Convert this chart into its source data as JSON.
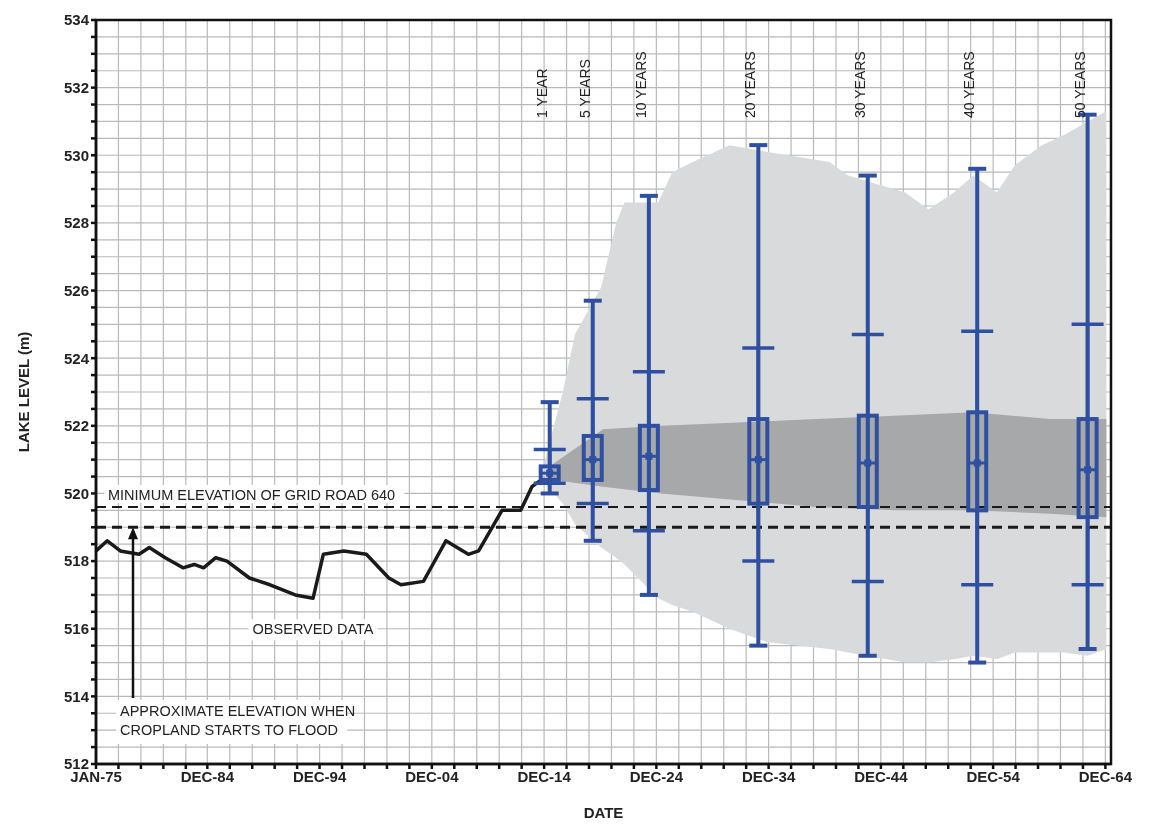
{
  "chart_data": {
    "type": "line",
    "xlabel": "DATE",
    "ylabel": "LAKE LEVEL (m)",
    "grid": true,
    "xlim": [
      "1975-01",
      "2065-06"
    ],
    "xticks": [
      {
        "value": "1975-01",
        "label": "JAN-75"
      },
      {
        "value": "1977-01",
        "label": null
      },
      {
        "value": "1979-01",
        "label": null
      },
      {
        "value": "1981-01",
        "label": null
      },
      {
        "value": "1983-01",
        "label": null
      },
      {
        "value": "1984-12",
        "label": "DEC-84"
      },
      {
        "value": "1986-12",
        "label": null
      },
      {
        "value": "1988-12",
        "label": null
      },
      {
        "value": "1990-12",
        "label": null
      },
      {
        "value": "1992-12",
        "label": null
      },
      {
        "value": "1994-12",
        "label": "DEC-94"
      },
      {
        "value": "1996-12",
        "label": null
      },
      {
        "value": "1998-12",
        "label": null
      },
      {
        "value": "2000-12",
        "label": null
      },
      {
        "value": "2002-12",
        "label": null
      },
      {
        "value": "2004-12",
        "label": "DEC-04"
      },
      {
        "value": "2006-12",
        "label": null
      },
      {
        "value": "2008-12",
        "label": null
      },
      {
        "value": "2010-12",
        "label": null
      },
      {
        "value": "2012-12",
        "label": null
      },
      {
        "value": "2014-12",
        "label": "DEC-14"
      },
      {
        "value": "2016-12",
        "label": null
      },
      {
        "value": "2018-12",
        "label": null
      },
      {
        "value": "2020-12",
        "label": null
      },
      {
        "value": "2022-12",
        "label": null
      },
      {
        "value": "2024-12",
        "label": "DEC-24"
      },
      {
        "value": "2026-12",
        "label": null
      },
      {
        "value": "2028-12",
        "label": null
      },
      {
        "value": "2030-12",
        "label": null
      },
      {
        "value": "2032-12",
        "label": null
      },
      {
        "value": "2034-12",
        "label": "DEC-34"
      },
      {
        "value": "2036-12",
        "label": null
      },
      {
        "value": "2038-12",
        "label": null
      },
      {
        "value": "2040-12",
        "label": null
      },
      {
        "value": "2042-12",
        "label": null
      },
      {
        "value": "2044-12",
        "label": "DEC-44"
      },
      {
        "value": "2046-12",
        "label": null
      },
      {
        "value": "2048-12",
        "label": null
      },
      {
        "value": "2050-12",
        "label": null
      },
      {
        "value": "2052-12",
        "label": null
      },
      {
        "value": "2054-12",
        "label": "DEC-54"
      },
      {
        "value": "2056-12",
        "label": null
      },
      {
        "value": "2058-12",
        "label": null
      },
      {
        "value": "2060-12",
        "label": null
      },
      {
        "value": "2062-12",
        "label": null
      },
      {
        "value": "2064-12",
        "label": "DEC-64"
      }
    ],
    "ylim": [
      512,
      534
    ],
    "yticks": [
      512,
      {
        "value": 512.5,
        "label": null
      },
      {
        "value": 513,
        "label": null
      },
      {
        "value": 513.5,
        "label": null
      },
      514,
      {
        "value": 514.5,
        "label": null
      },
      {
        "value": 515,
        "label": null
      },
      {
        "value": 515.5,
        "label": null
      },
      516,
      {
        "value": 516.5,
        "label": null
      },
      {
        "value": 517,
        "label": null
      },
      {
        "value": 517.5,
        "label": null
      },
      518,
      {
        "value": 518.5,
        "label": null
      },
      {
        "value": 519,
        "label": null
      },
      {
        "value": 519.5,
        "label": null
      },
      520,
      {
        "value": 520.5,
        "label": null
      },
      {
        "value": 521,
        "label": null
      },
      {
        "value": 521.5,
        "label": null
      },
      522,
      {
        "value": 522.5,
        "label": null
      },
      {
        "value": 523,
        "label": null
      },
      {
        "value": 523.5,
        "label": null
      },
      524,
      {
        "value": 524.5,
        "label": null
      },
      {
        "value": 525,
        "label": null
      },
      {
        "value": 525.5,
        "label": null
      },
      526,
      {
        "value": 526.5,
        "label": null
      },
      {
        "value": 527,
        "label": null
      },
      {
        "value": 527.5,
        "label": null
      },
      528,
      {
        "value": 528.5,
        "label": null
      },
      {
        "value": 529,
        "label": null
      },
      {
        "value": 529.5,
        "label": null
      },
      530,
      {
        "value": 530.5,
        "label": null
      },
      {
        "value": 531,
        "label": null
      },
      {
        "value": 531.5,
        "label": null
      },
      532,
      {
        "value": 532.5,
        "label": null
      },
      {
        "value": 533,
        "label": null
      },
      {
        "value": 533.5,
        "label": null
      },
      534
    ],
    "series": [
      {
        "type": "area",
        "color": "#d9dadc",
        "x": [
          "2015-01",
          "2016-08",
          "2017-09",
          "2020-01",
          "2021-05",
          "2022-02",
          "2025-02",
          "2026-05",
          "2028-03",
          "2031-06",
          "2034-11",
          "2040-05",
          "2042-01",
          "2047-02",
          "2049-03",
          "2051-06",
          "2053-03",
          "2055-04",
          "2056-11",
          "2059-04",
          "2061-04",
          "2063-05",
          "2065-01"
        ],
        "values": [
          null,
          null,
          null,
          null,
          null,
          null,
          null,
          null,
          null,
          null,
          null,
          null,
          null,
          null,
          null,
          null,
          null,
          null,
          null,
          null,
          null,
          null,
          null
        ],
        "lower": [
          520.3,
          519.7,
          519.1,
          518.4,
          518.1,
          517.9,
          516.9,
          516.7,
          516.5,
          516.0,
          515.6,
          515.4,
          515.3,
          515.0,
          515.0,
          515.1,
          515.2,
          515.1,
          515.3,
          515.3,
          515.3,
          515.2,
          515.4
        ],
        "upper": [
          521.0,
          523.0,
          524.7,
          526.1,
          528.0,
          528.6,
          528.6,
          529.5,
          529.8,
          530.3,
          530.1,
          529.8,
          529.4,
          528.9,
          528.4,
          528.9,
          529.4,
          528.9,
          529.7,
          530.3,
          530.6,
          531.0,
          531.3
        ]
      },
      {
        "type": "area",
        "color": "#a7a8aa",
        "x": [
          "2015-03",
          "2015-11",
          "2020-03",
          "2025-05",
          "2032-04",
          "2039-03",
          "2046-02",
          "2053-02",
          "2060-01",
          "2065-01"
        ],
        "values": [
          null,
          null,
          null,
          null,
          null,
          null,
          null,
          null,
          null,
          null
        ],
        "lower": [
          520.5,
          520.4,
          520.2,
          520.0,
          519.8,
          519.6,
          519.5,
          519.5,
          519.4,
          519.3
        ],
        "upper": [
          520.7,
          520.9,
          521.9,
          522.0,
          522.1,
          522.2,
          522.3,
          522.4,
          522.2,
          522.2
        ]
      },
      {
        "name": "OBSERVED DATA",
        "color": "#1a1a1a",
        "x": [
          "1975-01",
          "1976-01",
          "1977-03",
          "1978-11",
          "1979-10",
          "1981-03",
          "1982-10",
          "1983-10",
          "1984-08",
          "1985-09",
          "1986-09",
          "1988-09",
          "1990-07",
          "1992-10",
          "1994-05",
          "1995-04",
          "1997-02",
          "1999-02",
          "2001-02",
          "2002-03",
          "2004-03",
          "2005-01",
          "2006-03",
          "2008-03",
          "2009-02",
          "2011-03",
          "2012-11",
          "2013-11",
          "2014-09"
        ],
        "values": [
          518.3,
          518.6,
          518.3,
          518.2,
          518.4,
          518.1,
          517.8,
          517.9,
          517.8,
          518.1,
          518.0,
          517.5,
          517.3,
          517.0,
          516.9,
          518.2,
          518.3,
          518.2,
          517.5,
          517.3,
          517.4,
          517.9,
          518.6,
          518.2,
          518.3,
          519.5,
          519.5,
          520.2,
          520.4
        ]
      },
      {
        "type": "box",
        "color": "#2f4fa0",
        "x": [
          "2015-06",
          "2019-04",
          "2024-04",
          "2034-01",
          "2043-10",
          "2053-07",
          "2063-05"
        ],
        "boxes": [
          {
            "low": 520.0,
            "q1": 520.4,
            "median": 520.6,
            "q3": 520.8,
            "high": 522.7
          },
          {
            "low": 518.6,
            "q1": 520.4,
            "median": 521.0,
            "q3": 521.7,
            "high": 525.7
          },
          {
            "low": 517.0,
            "q1": 520.1,
            "median": 521.1,
            "q3": 522.0,
            "high": 528.8
          },
          {
            "low": 515.5,
            "q1": 519.7,
            "median": 521.0,
            "q3": 522.2,
            "high": 530.3
          },
          {
            "low": 515.2,
            "q1": 519.6,
            "median": 520.9,
            "q3": 522.3,
            "high": 529.4
          },
          {
            "low": 515.0,
            "q1": 519.5,
            "median": 520.9,
            "q3": 522.4,
            "high": 529.6
          },
          {
            "low": 515.4,
            "q1": 519.3,
            "median": 520.7,
            "q3": 522.2,
            "high": 531.2
          }
        ]
      },
      {
        "type": "scatter",
        "color": "#2f4fa0",
        "x": [
          "2015-06",
          "2019-04",
          "2024-04",
          "2034-01",
          "2043-10",
          "2053-07",
          "2063-05"
        ],
        "marker": "square",
        "values": [
          520.6,
          521.0,
          521.1,
          521.0,
          520.9,
          520.9,
          520.7
        ],
        "errors": [
          [
            520.3,
            521.3
          ],
          [
            519.7,
            522.8
          ],
          [
            518.9,
            523.6
          ],
          [
            518.0,
            524.3
          ],
          [
            517.4,
            524.7
          ],
          [
            517.3,
            524.8
          ],
          [
            517.3,
            525.0
          ]
        ]
      }
    ],
    "ref_lines": [
      {
        "axis": "y",
        "value": 519.6,
        "label": "MINIMUM ELEVATION OF GRID ROAD 640",
        "color": "#1a1a1a",
        "line_style": "dashed"
      },
      {
        "axis": "y",
        "value": 519.0,
        "label": "APPROXIMATE ELEVATION WHEN CROPLAND STARTS TO FLOOD",
        "color": "#1a1a1a",
        "line_style": "dashed"
      }
    ],
    "annotations": [
      "1 YEAR",
      "5 YEARS",
      "10 YEARS",
      "20 YEARS",
      "30 YEARS",
      "40 YEARS",
      "50 YEARS"
    ]
  }
}
